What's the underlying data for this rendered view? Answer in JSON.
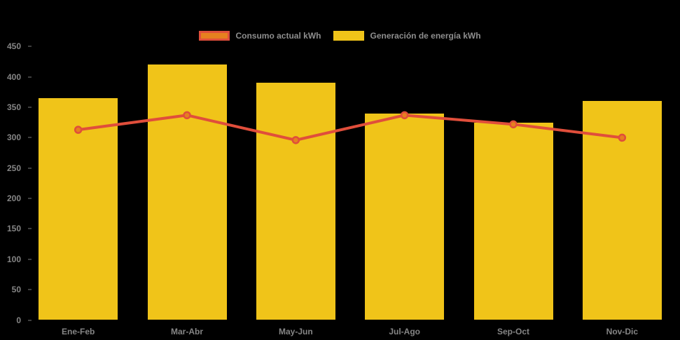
{
  "legend": {
    "items": [
      {
        "label": "Consumo actual kWh",
        "swatch_fill": "#E6801F",
        "swatch_border": "#E04E3B"
      },
      {
        "label": "Generación de energía kWh",
        "swatch_fill": "#F0C419",
        "swatch_border": "#F0C419"
      }
    ]
  },
  "chart_data": {
    "type": "bar",
    "title": "",
    "xlabel": "",
    "ylabel": "",
    "background": "#000000",
    "grid": "off",
    "legend_position": "top",
    "tick_label_color": "#858585",
    "categories": [
      "Ene-Feb",
      "Mar-Abr",
      "May-Jun",
      "Jul-Ago",
      "Sep-Oct",
      "Nov-Dic"
    ],
    "series": [
      {
        "name": "Generación de energía kWh",
        "type": "bar",
        "color": "#F0C419",
        "values": [
          365,
          420,
          390,
          340,
          325,
          360
        ]
      },
      {
        "name": "Consumo actual kWh",
        "type": "line",
        "color": "#E04E3B",
        "marker_fill": "#E6801F",
        "marker_stroke": "#E04E3B",
        "values": [
          313,
          337,
          296,
          337,
          322,
          300
        ]
      }
    ],
    "ylim": [
      0,
      450
    ],
    "y_ticks": [
      0,
      50,
      100,
      150,
      200,
      250,
      300,
      350,
      400,
      450
    ]
  }
}
